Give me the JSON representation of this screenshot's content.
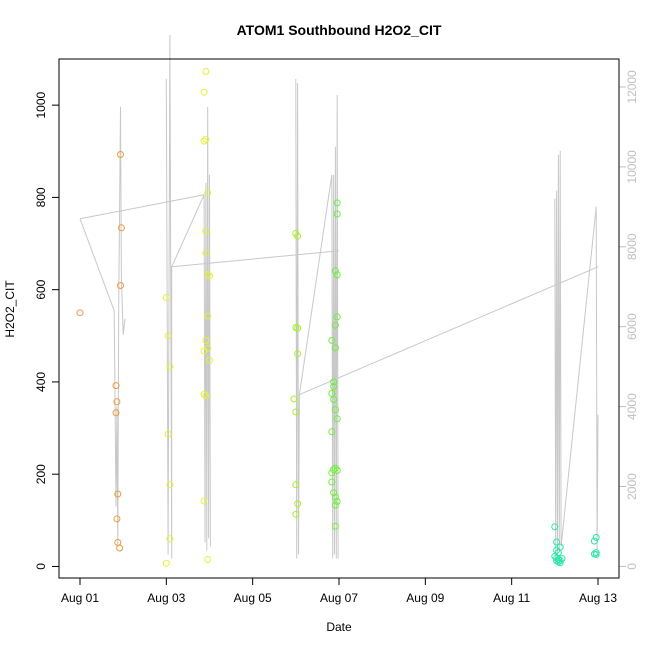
{
  "chart_data": {
    "type": "scatter",
    "title": "ATOM1 Southbound H2O2_CIT",
    "xlabel": "Date",
    "ylabel": "H2O2_CIT",
    "x_axis": {
      "kind": "date",
      "range": [
        "2016-08-01",
        "2016-08-13"
      ],
      "tick_labels": [
        "Aug 01",
        "Aug 03",
        "Aug 05",
        "Aug 07",
        "Aug 09",
        "Aug 11",
        "Aug 13"
      ],
      "tick_dates": [
        "2016-08-01",
        "2016-08-03",
        "2016-08-05",
        "2016-08-07",
        "2016-08-09",
        "2016-08-11",
        "2016-08-13"
      ]
    },
    "y_axis": {
      "range": [
        -25,
        1100
      ],
      "ticks": [
        0,
        200,
        400,
        600,
        800,
        1000
      ]
    },
    "y2_axis": {
      "range": [
        -290,
        12700
      ],
      "ticks": [
        0,
        2000,
        4000,
        6000,
        8000,
        10000,
        12000
      ],
      "color": "#bfbfbf"
    },
    "grid": false,
    "legend": "none",
    "line_color": "#c8c8c8",
    "series": [
      {
        "color": "#f29a3c",
        "points": [
          {
            "x": "2016-08-01T00:00",
            "y": 550
          },
          {
            "x": "2016-08-01T20:00",
            "y": 392
          },
          {
            "x": "2016-08-01T20:30",
            "y": 357
          },
          {
            "x": "2016-08-01T20:00",
            "y": 333
          },
          {
            "x": "2016-08-01T21:00",
            "y": 157
          },
          {
            "x": "2016-08-01T20:30",
            "y": 103
          },
          {
            "x": "2016-08-01T21:00",
            "y": 52
          },
          {
            "x": "2016-08-01T22:00",
            "y": 40
          },
          {
            "x": "2016-08-01T22:30",
            "y": 893
          },
          {
            "x": "2016-08-01T23:00",
            "y": 734
          },
          {
            "x": "2016-08-01T22:30",
            "y": 609
          }
        ]
      },
      {
        "color": "#e4f234",
        "points": [
          {
            "x": "2016-08-03T00:00",
            "y": 583
          },
          {
            "x": "2016-08-03T01:00",
            "y": 500
          },
          {
            "x": "2016-08-03T02:00",
            "y": 433
          },
          {
            "x": "2016-08-03T01:00",
            "y": 287
          },
          {
            "x": "2016-08-03T02:00",
            "y": 177
          },
          {
            "x": "2016-08-03T02:00",
            "y": 60
          },
          {
            "x": "2016-08-03T00:00",
            "y": 7
          },
          {
            "x": "2016-08-03T21:00",
            "y": 1028
          },
          {
            "x": "2016-08-03T21:00",
            "y": 922
          },
          {
            "x": "2016-08-03T22:00",
            "y": 926
          },
          {
            "x": "2016-08-03T23:00",
            "y": 810
          },
          {
            "x": "2016-08-03T22:00",
            "y": 727
          },
          {
            "x": "2016-08-03T22:00",
            "y": 680
          },
          {
            "x": "2016-08-03T23:00",
            "y": 633
          },
          {
            "x": "2016-08-04T00:00",
            "y": 630
          },
          {
            "x": "2016-08-03T23:00",
            "y": 543
          },
          {
            "x": "2016-08-03T22:00",
            "y": 490
          },
          {
            "x": "2016-08-03T23:00",
            "y": 473
          },
          {
            "x": "2016-08-03T21:00",
            "y": 467
          },
          {
            "x": "2016-08-04T00:00",
            "y": 447
          },
          {
            "x": "2016-08-03T21:00",
            "y": 373
          },
          {
            "x": "2016-08-03T22:00",
            "y": 370
          },
          {
            "x": "2016-08-03T21:00",
            "y": 142
          },
          {
            "x": "2016-08-03T23:00",
            "y": 15
          },
          {
            "x": "2016-08-03T22:00",
            "y": 1073
          }
        ]
      },
      {
        "color": "#a7f02c",
        "points": [
          {
            "x": "2016-08-06T00:00",
            "y": 722
          },
          {
            "x": "2016-08-06T01:00",
            "y": 716
          },
          {
            "x": "2016-08-06T00:00",
            "y": 518
          },
          {
            "x": "2016-08-06T01:00",
            "y": 517
          },
          {
            "x": "2016-08-06T01:00",
            "y": 461
          },
          {
            "x": "2016-08-05T23:00",
            "y": 363
          },
          {
            "x": "2016-08-06T00:00",
            "y": 335
          },
          {
            "x": "2016-08-06T00:00",
            "y": 177
          },
          {
            "x": "2016-08-06T01:00",
            "y": 136
          },
          {
            "x": "2016-08-06T00:00",
            "y": 113
          }
        ]
      },
      {
        "color": "#6ef03a",
        "points": [
          {
            "x": "2016-08-06T20:00",
            "y": 490
          },
          {
            "x": "2016-08-06T21:00",
            "y": 400
          },
          {
            "x": "2016-08-06T21:00",
            "y": 390
          },
          {
            "x": "2016-08-06T20:00",
            "y": 375
          },
          {
            "x": "2016-08-06T21:00",
            "y": 362
          },
          {
            "x": "2016-08-06T20:00",
            "y": 292
          },
          {
            "x": "2016-08-06T20:00",
            "y": 203
          },
          {
            "x": "2016-08-06T21:00",
            "y": 210
          },
          {
            "x": "2016-08-06T20:00",
            "y": 183
          },
          {
            "x": "2016-08-06T21:00",
            "y": 160
          },
          {
            "x": "2016-08-06T22:00",
            "y": 150
          },
          {
            "x": "2016-08-06T23:00",
            "y": 788
          },
          {
            "x": "2016-08-06T23:00",
            "y": 764
          },
          {
            "x": "2016-08-06T22:00",
            "y": 641
          },
          {
            "x": "2016-08-06T23:00",
            "y": 632
          },
          {
            "x": "2016-08-06T22:00",
            "y": 523
          },
          {
            "x": "2016-08-06T23:00",
            "y": 541
          },
          {
            "x": "2016-08-06T22:00",
            "y": 474
          },
          {
            "x": "2016-08-06T22:00",
            "y": 340
          },
          {
            "x": "2016-08-06T23:00",
            "y": 320
          },
          {
            "x": "2016-08-06T22:00",
            "y": 213
          },
          {
            "x": "2016-08-06T23:00",
            "y": 208
          },
          {
            "x": "2016-08-06T23:00",
            "y": 141
          },
          {
            "x": "2016-08-06T22:00",
            "y": 133
          },
          {
            "x": "2016-08-06T22:00",
            "y": 87
          }
        ]
      },
      {
        "color": "#2de6a8",
        "points": [
          {
            "x": "2016-08-12T00:00",
            "y": 86
          },
          {
            "x": "2016-08-12T01:00",
            "y": 53
          },
          {
            "x": "2016-08-12T03:00",
            "y": 42
          },
          {
            "x": "2016-08-12T01:00",
            "y": 35
          },
          {
            "x": "2016-08-12T02:00",
            "y": 30
          },
          {
            "x": "2016-08-12T00:00",
            "y": 22
          },
          {
            "x": "2016-08-12T01:00",
            "y": 18
          },
          {
            "x": "2016-08-12T02:00",
            "y": 15
          },
          {
            "x": "2016-08-12T03:00",
            "y": 13
          },
          {
            "x": "2016-08-12T04:00",
            "y": 17
          },
          {
            "x": "2016-08-12T02:00",
            "y": 10
          },
          {
            "x": "2016-08-12T03:00",
            "y": 8
          },
          {
            "x": "2016-08-12T01:00",
            "y": 12
          },
          {
            "x": "2016-08-12T23:00",
            "y": 63
          },
          {
            "x": "2016-08-12T22:00",
            "y": 55
          },
          {
            "x": "2016-08-12T23:00",
            "y": 30
          },
          {
            "x": "2016-08-12T22:00",
            "y": 27
          },
          {
            "x": "2016-08-12T23:00",
            "y": 26
          }
        ]
      }
    ],
    "secondary_line": {
      "axis": "y2",
      "color": "#c8c8c8",
      "segments": [
        [
          {
            "x": "2016-08-01T00:00",
            "y2": 8700
          },
          {
            "x": "2016-08-01T19:00",
            "y2": 6400
          },
          {
            "x": "2016-08-01T20:00",
            "y2": 1500
          },
          {
            "x": "2016-08-01T20:30",
            "y2": 4000
          },
          {
            "x": "2016-08-01T21:00",
            "y2": 500
          },
          {
            "x": "2016-08-01T21:30",
            "y2": 6500
          },
          {
            "x": "2016-08-01T22:00",
            "y2": 9000
          },
          {
            "x": "2016-08-01T22:30",
            "y2": 11500
          },
          {
            "x": "2016-08-01T23:00",
            "y2": 7200
          },
          {
            "x": "2016-08-02T00:00",
            "y2": 5800
          },
          {
            "x": "2016-08-02T01:00",
            "y2": 6200
          }
        ],
        [
          {
            "x": "2016-08-01T00:00",
            "y2": 8700
          },
          {
            "x": "2016-08-03T21:00",
            "y2": 9300
          }
        ],
        [
          {
            "x": "2016-08-03T00:00",
            "y2": 12200
          },
          {
            "x": "2016-08-03T01:00",
            "y2": 300
          },
          {
            "x": "2016-08-03T02:00",
            "y2": 13300
          },
          {
            "x": "2016-08-03T03:00",
            "y2": 200
          },
          {
            "x": "2016-08-03T03:00",
            "y2": 7500
          },
          {
            "x": "2016-08-03T21:00",
            "y2": 9300
          },
          {
            "x": "2016-08-03T21:30",
            "y2": 600
          },
          {
            "x": "2016-08-03T22:00",
            "y2": 9600
          },
          {
            "x": "2016-08-03T22:30",
            "y2": 400
          },
          {
            "x": "2016-08-03T23:00",
            "y2": 11500
          },
          {
            "x": "2016-08-03T23:30",
            "y2": 700
          },
          {
            "x": "2016-08-04T00:00",
            "y2": 9800
          },
          {
            "x": "2016-08-04T00:30",
            "y2": 500
          }
        ],
        [
          {
            "x": "2016-08-03T03:00",
            "y2": 7500
          },
          {
            "x": "2016-08-07T00:00",
            "y2": 7900
          }
        ],
        [
          {
            "x": "2016-08-06T00:00",
            "y2": 12200
          },
          {
            "x": "2016-08-06T00:30",
            "y2": 200
          },
          {
            "x": "2016-08-06T01:00",
            "y2": 12100
          },
          {
            "x": "2016-08-06T01:30",
            "y2": 300
          },
          {
            "x": "2016-08-06T02:00",
            "y2": 4300
          },
          {
            "x": "2016-08-06T20:00",
            "y2": 9800
          },
          {
            "x": "2016-08-06T20:30",
            "y2": 200
          },
          {
            "x": "2016-08-06T21:00",
            "y2": 9800
          },
          {
            "x": "2016-08-06T21:30",
            "y2": 300
          },
          {
            "x": "2016-08-06T22:00",
            "y2": 10500
          },
          {
            "x": "2016-08-06T22:30",
            "y2": 200
          },
          {
            "x": "2016-08-06T23:00",
            "y2": 11800
          },
          {
            "x": "2016-08-06T23:30",
            "y2": 200
          }
        ],
        [
          {
            "x": "2016-08-06T02:00",
            "y2": 4300
          },
          {
            "x": "2016-08-13T00:00",
            "y2": 7500
          }
        ],
        [
          {
            "x": "2016-08-12T00:00",
            "y2": 9200
          },
          {
            "x": "2016-08-12T00:30",
            "y2": 200
          },
          {
            "x": "2016-08-12T01:00",
            "y2": 9400
          },
          {
            "x": "2016-08-12T01:30",
            "y2": 300
          },
          {
            "x": "2016-08-12T02:00",
            "y2": 10300
          },
          {
            "x": "2016-08-12T02:30",
            "y2": 400
          },
          {
            "x": "2016-08-12T03:00",
            "y2": 10400
          },
          {
            "x": "2016-08-12T03:30",
            "y2": 500
          },
          {
            "x": "2016-08-12T23:00",
            "y2": 9000
          },
          {
            "x": "2016-08-12T23:30",
            "y2": 400
          },
          {
            "x": "2016-08-13T00:00",
            "y2": 3800
          }
        ]
      ]
    }
  }
}
